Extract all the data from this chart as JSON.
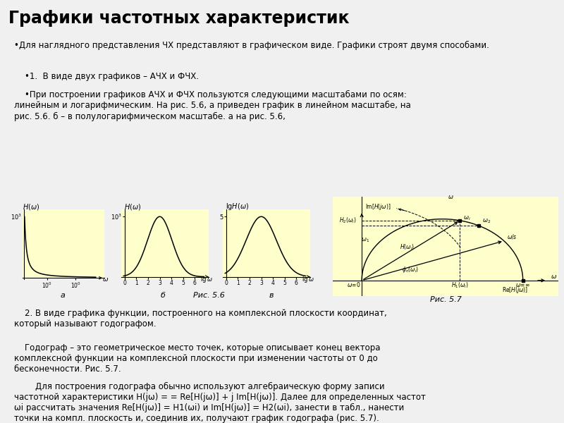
{
  "title": "Графики частотных характеристик",
  "title_bg": "#c8e6a0",
  "content_bg": "#ffffcc",
  "white_bg": "#f0f0f0",
  "text_color": "#000000",
  "title_fontsize": 17,
  "body_fontsize": 8.5,
  "para1": "•Для наглядного представления ЧХ представляют в графическом виде. Графики строят двумя способами.",
  "para2": "    •1.  В виде двух графиков – АЧХ и ФЧХ.",
  "para3": "    •При построении графиков АЧХ и ФЧХ пользуются следующими масштабами по осям:\nлинейным и логарифмическим. На рис. 5.6, а приведен график в линейном масштабе, на\nрис. 5.6. б – в полулогарифмическом масштабе. а на рис. 5.6,",
  "para4": "    2. В виде графика функции, построенного на комплексной плоскости координат,\nкоторый называют годографом.",
  "para5": "    Годограф – это геометрическое место точек, которые описывает конец вектора\nкомплексной функции на комплексной плоскости при изменении частоты от 0 до\nбесконечности. Рис. 5.7.",
  "para6": "        Для построения годографа обычно используют алгебраическую форму записи\nчастотной характеристики H(jω) = = Re[H(jω)] + j Im[H(jω)]. Далее для определенных частот\nωi рассчитать значения Re[H(jω)] = H1(ωi) и Im[H(jω)] = H2(ωi), занести в табл., нанести\nточки на компл. плоскость и, соединив их, получают график годографа (рис. 5.7)."
}
